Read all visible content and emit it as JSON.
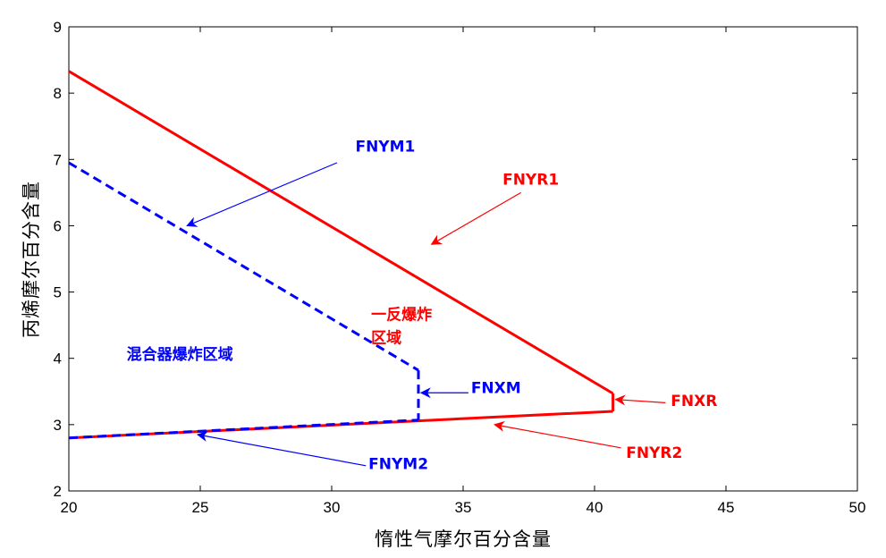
{
  "chart_data": {
    "type": "line",
    "title": "",
    "xlabel": "惰性气摩尔百分含量",
    "ylabel": "丙烯摩尔百分含量",
    "xlim": [
      20,
      50
    ],
    "ylim": [
      2,
      9
    ],
    "xticks": [
      20,
      25,
      30,
      35,
      40,
      45,
      50
    ],
    "yticks": [
      2,
      3,
      4,
      5,
      6,
      7,
      8,
      9
    ],
    "grid": false,
    "legend": "none",
    "series": [
      {
        "name": "FNYR1",
        "color": "#ff0000",
        "style": "solid",
        "x": [
          20,
          40.7
        ],
        "y": [
          8.33,
          3.47
        ]
      },
      {
        "name": "FNXR",
        "color": "#ff0000",
        "style": "solid",
        "x": [
          40.7,
          40.7
        ],
        "y": [
          3.47,
          3.2
        ]
      },
      {
        "name": "FNYR2",
        "color": "#ff0000",
        "style": "solid",
        "x": [
          20,
          40.7
        ],
        "y": [
          2.8,
          3.2
        ]
      },
      {
        "name": "FNYM1",
        "color": "#0000ff",
        "style": "dashed",
        "x": [
          20,
          33.3
        ],
        "y": [
          6.95,
          3.82
        ]
      },
      {
        "name": "FNXM",
        "color": "#0000ff",
        "style": "dashed",
        "x": [
          33.3,
          33.3
        ],
        "y": [
          3.82,
          3.07
        ]
      },
      {
        "name": "FNYM2",
        "color": "#0000ff",
        "style": "dashed",
        "x": [
          20,
          33.3
        ],
        "y": [
          2.8,
          3.07
        ]
      }
    ],
    "annotations": [
      {
        "text": "FNYM1",
        "color": "#0000ff",
        "x": 30.9,
        "y": 7.12,
        "arrow_from": [
          30.2,
          6.95
        ],
        "arrow_to": [
          24.5,
          6.0
        ]
      },
      {
        "text": "FNYR1",
        "color": "#ff0000",
        "x": 36.5,
        "y": 6.62,
        "arrow_from": [
          37.2,
          6.5
        ],
        "arrow_to": [
          33.8,
          5.72
        ]
      },
      {
        "text": "一反爆炸",
        "color": "#ff0000",
        "x": 31.5,
        "y": 4.58
      },
      {
        "text": "区域",
        "color": "#ff0000",
        "x": 31.5,
        "y": 4.23
      },
      {
        "text": "混合器爆炸区域",
        "color": "#0000ff",
        "x": 22.2,
        "y": 3.98
      },
      {
        "text": "FNXM",
        "color": "#0000ff",
        "x": 35.3,
        "y": 3.48,
        "arrow_from": [
          35.2,
          3.48
        ],
        "arrow_to": [
          33.4,
          3.48
        ]
      },
      {
        "text": "FNXR",
        "color": "#ff0000",
        "x": 42.9,
        "y": 3.28,
        "arrow_from": [
          42.7,
          3.33
        ],
        "arrow_to": [
          40.8,
          3.38
        ]
      },
      {
        "text": "FNYR2",
        "color": "#ff0000",
        "x": 41.2,
        "y": 2.5,
        "arrow_from": [
          41.0,
          2.65
        ],
        "arrow_to": [
          36.2,
          3.0
        ]
      },
      {
        "text": "FNYM2",
        "color": "#0000ff",
        "x": 31.4,
        "y": 2.33,
        "arrow_from": [
          31.3,
          2.38
        ],
        "arrow_to": [
          24.9,
          2.85
        ]
      }
    ]
  }
}
